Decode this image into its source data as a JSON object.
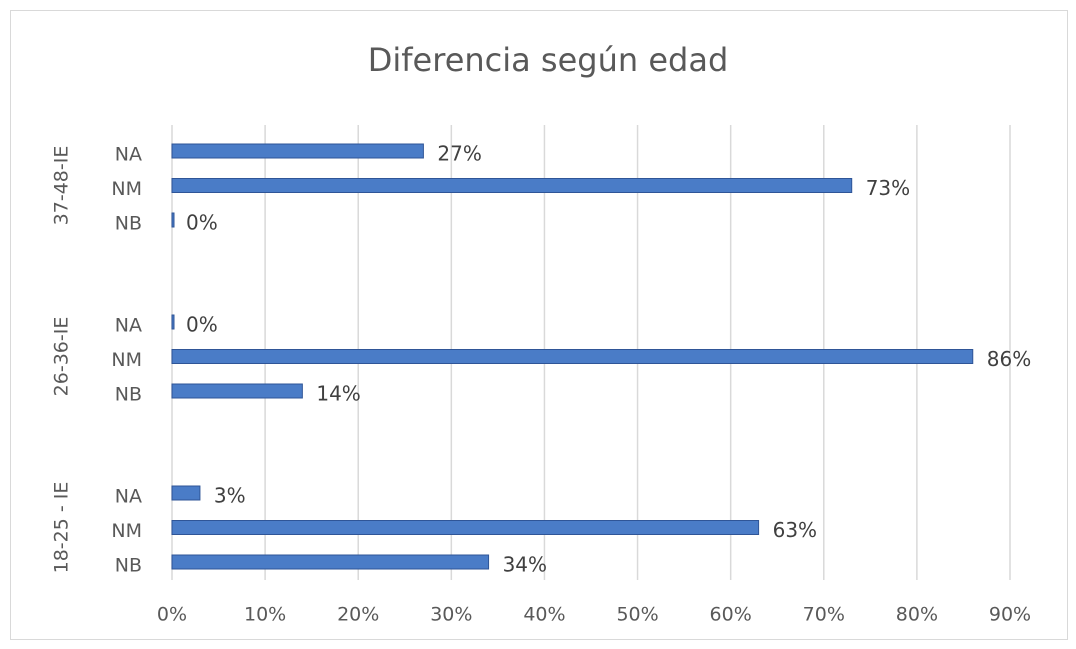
{
  "chart_data": {
    "type": "bar",
    "orientation": "horizontal",
    "title": "Diferencia según edad",
    "color": "#4a7cc7",
    "grid": true,
    "groups": [
      {
        "name": "37-48-IE",
        "categories": [
          "NA",
          "NM",
          "NB"
        ],
        "values": [
          27,
          73,
          0
        ],
        "value_labels": [
          "27%",
          "73%",
          "0%"
        ]
      },
      {
        "name": "26-36-IE",
        "categories": [
          "NA",
          "NM",
          "NB"
        ],
        "values": [
          0,
          86,
          14
        ],
        "value_labels": [
          "0%",
          "86%",
          "14%"
        ]
      },
      {
        "name": "18-25 - IE",
        "categories": [
          "NA",
          "NM",
          "NB"
        ],
        "values": [
          3,
          63,
          34
        ],
        "value_labels": [
          "3%",
          "63%",
          "34%"
        ]
      }
    ],
    "xlim": [
      0,
      90
    ],
    "xticks": [
      {
        "value": 0,
        "label": "0%"
      },
      {
        "value": 10,
        "label": "10%"
      },
      {
        "value": 20,
        "label": "20%"
      },
      {
        "value": 30,
        "label": "30%"
      },
      {
        "value": 40,
        "label": "40%"
      },
      {
        "value": 50,
        "label": "50%"
      },
      {
        "value": 60,
        "label": "60%"
      },
      {
        "value": 70,
        "label": "70%"
      },
      {
        "value": 80,
        "label": "80%"
      },
      {
        "value": 90,
        "label": "90%"
      }
    ]
  }
}
